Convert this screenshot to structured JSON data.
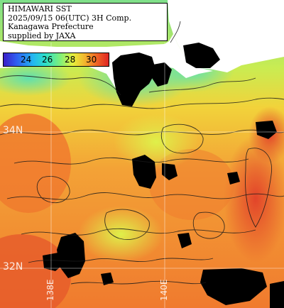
{
  "title": {
    "line1": "HIMAWARI SST",
    "line2": "2025/09/15 06(UTC) 3H Comp.",
    "line3": "Kanagawa Prefecture",
    "line4": "supplied by JAXA"
  },
  "legend": {
    "ticks": [
      "24",
      "26",
      "28",
      "30"
    ]
  },
  "grid": {
    "lat_labels": [
      "34N",
      "32N"
    ],
    "lon_labels": [
      "138E",
      "140E"
    ]
  },
  "colors": {
    "land": "#ffffff",
    "cloud": "#000000",
    "sst_cool": "#8ae68a",
    "sst_mid": "#f2d23a",
    "sst_warm": "#f07a2e",
    "sst_hot": "#e2442a"
  }
}
